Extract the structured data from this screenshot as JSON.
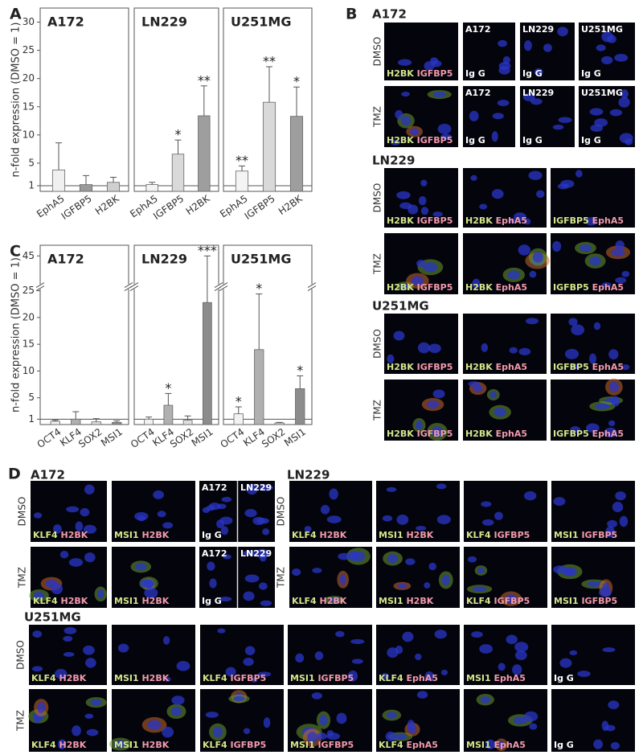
{
  "chart_data": [
    {
      "type": "bar",
      "panel_label": "A",
      "ylabel": "n-fold expression (DMSO = 1)",
      "title": "A172",
      "categories": [
        "EphA5",
        "IGFBP5",
        "H2BK"
      ],
      "values": [
        3.8,
        1.2,
        1.6
      ],
      "errors": [
        4.8,
        1.6,
        0.9
      ],
      "significance": [
        null,
        null,
        null
      ],
      "colors": [
        "#f0f0f0",
        "#9a9a9a",
        "#cfcfcf"
      ],
      "ylim": [
        0,
        32.5
      ],
      "yticks": [
        1,
        5,
        10,
        15,
        20,
        25,
        30
      ],
      "reference_line": 1
    },
    {
      "type": "bar",
      "title": "LN229",
      "categories": [
        "EphA5",
        "IGFBP5",
        "H2BK"
      ],
      "values": [
        1.2,
        6.6,
        13.4
      ],
      "errors": [
        0.4,
        2.5,
        5.3
      ],
      "significance": [
        null,
        "*",
        "**"
      ],
      "colors": [
        "#f4f4f4",
        "#d9d9d9",
        "#9e9e9e"
      ],
      "ylim": [
        0,
        32.5
      ],
      "reference_line": 1
    },
    {
      "type": "bar",
      "title": "U251MG",
      "categories": [
        "EphA5",
        "IGFBP5",
        "H2BK"
      ],
      "values": [
        3.6,
        15.8,
        13.3
      ],
      "errors": [
        0.9,
        6.3,
        5.2
      ],
      "significance": [
        "**",
        "**",
        "*"
      ],
      "colors": [
        "#f4f4f4",
        "#d9d9d9",
        "#9e9e9e"
      ],
      "ylim": [
        0,
        32.5
      ],
      "reference_line": 1
    },
    {
      "type": "bar",
      "panel_label": "C",
      "ylabel": "n-fold expression (DMSO = 1)",
      "title": "A172",
      "categories": [
        "OCT4",
        "KLF4",
        "SOX2",
        "MSI1"
      ],
      "values": [
        0.6,
        1.0,
        0.5,
        0.4
      ],
      "errors": [
        0.2,
        1.4,
        0.6,
        0.3
      ],
      "significance": [
        null,
        null,
        null,
        null
      ],
      "colors": [
        "#f2f2f2",
        "#b0b0b0",
        "#e0e0e0",
        "#8c8c8c"
      ],
      "ylim": [
        0,
        47
      ],
      "ybreak": [
        25,
        40
      ],
      "yticks": [
        1,
        5,
        10,
        15,
        20,
        25,
        45
      ],
      "reference_line": 1
    },
    {
      "type": "bar",
      "title": "LN229",
      "categories": [
        "OCT4",
        "KLF4",
        "SOX2",
        "MSI1"
      ],
      "values": [
        1.0,
        3.6,
        0.8,
        22.8
      ],
      "errors": [
        0.4,
        2.2,
        0.8,
        22.2
      ],
      "significance": [
        null,
        "*",
        null,
        "***"
      ],
      "colors": [
        "#f2f2f2",
        "#b0b0b0",
        "#e0e0e0",
        "#8c8c8c"
      ],
      "ylim": [
        0,
        47
      ],
      "ybreak": [
        25,
        40
      ],
      "reference_line": 1
    },
    {
      "type": "bar",
      "title": "U251MG",
      "categories": [
        "OCT4",
        "KLF4",
        "SOX2",
        "MSI1"
      ],
      "values": [
        2.0,
        14.0,
        0.3,
        6.7
      ],
      "errors": [
        1.3,
        10.4,
        0.1,
        2.4
      ],
      "significance": [
        "*",
        "*",
        null,
        "*"
      ],
      "colors": [
        "#f2f2f2",
        "#b0b0b0",
        "#e0e0e0",
        "#8c8c8c"
      ],
      "ylim": [
        0,
        47
      ],
      "ybreak": [
        25,
        40
      ],
      "reference_line": 1
    }
  ],
  "image_panels": [
    {
      "panel_label": "B",
      "groups": [
        {
          "title": "A172",
          "rows": [
            {
              "condition": "DMSO",
              "images": [
                {
                  "green": "H2BK",
                  "red": "IGFBP5"
                },
                {
                  "top": "A172",
                  "white": "Ig G"
                },
                {
                  "top": "LN229",
                  "white": "Ig G"
                },
                {
                  "top": "U251MG",
                  "white": "Ig G"
                }
              ]
            },
            {
              "condition": "TMZ",
              "images": [
                {
                  "green": "H2BK",
                  "red": "IGFBP5"
                },
                {
                  "top": "A172",
                  "white": "Ig G"
                },
                {
                  "top": "LN229",
                  "white": "Ig G"
                },
                {
                  "top": "U251MG",
                  "white": "Ig G"
                }
              ]
            }
          ]
        },
        {
          "title": "LN229",
          "rows": [
            {
              "condition": "DMSO",
              "images": [
                {
                  "green": "H2BK",
                  "red": "IGFBP5"
                },
                {
                  "green": "H2BK",
                  "red": "EphA5"
                },
                {
                  "green": "IGFBP5",
                  "red": "EphA5"
                }
              ]
            },
            {
              "condition": "TMZ",
              "images": [
                {
                  "green": "H2BK",
                  "red": "IGFBP5"
                },
                {
                  "green": "H2BK",
                  "red": "EphA5"
                },
                {
                  "green": "IGFBP5",
                  "red": "EphA5"
                }
              ]
            }
          ]
        },
        {
          "title": "U251MG",
          "rows": [
            {
              "condition": "DMSO",
              "images": [
                {
                  "green": "H2BK",
                  "red": "IGFBP5"
                },
                {
                  "green": "H2BK",
                  "red": "EphA5"
                },
                {
                  "green": "IGFBP5",
                  "red": "EphA5"
                }
              ]
            },
            {
              "condition": "TMZ",
              "images": [
                {
                  "green": "H2BK",
                  "red": "IGFBP5"
                },
                {
                  "green": "H2BK",
                  "red": "EphA5"
                },
                {
                  "green": "IGFBP5",
                  "red": "EphA5"
                }
              ]
            }
          ]
        }
      ]
    },
    {
      "panel_label": "D",
      "groups": [
        {
          "title": "A172",
          "rows": [
            {
              "condition": "DMSO",
              "images": [
                {
                  "green": "KLF4",
                  "red": "H2BK"
                },
                {
                  "green": "MSI1",
                  "red": "H2BK"
                },
                {
                  "top": "A172",
                  "white": "Ig G"
                },
                {
                  "top": "LN229"
                }
              ]
            },
            {
              "condition": "TMZ",
              "images": [
                {
                  "green": "KLF4",
                  "red": "H2BK"
                },
                {
                  "green": "MSI1",
                  "red": "H2BK"
                },
                {
                  "top": "A172",
                  "white": "Ig G"
                },
                {
                  "top": "LN229"
                }
              ]
            }
          ]
        },
        {
          "title": "LN229",
          "rows": [
            {
              "condition": "DMSO",
              "images": [
                {
                  "green": "KLF4",
                  "red": "H2BK"
                },
                {
                  "green": "MSI1",
                  "red": "H2BK"
                },
                {
                  "green": "KLF4",
                  "red": "IGFBP5"
                },
                {
                  "green": "MSI1",
                  "red": "IGFBP5"
                }
              ]
            },
            {
              "condition": "TMZ",
              "images": [
                {
                  "green": "KLF4",
                  "red": "H2BK"
                },
                {
                  "green": "MSI1",
                  "red": "H2BK"
                },
                {
                  "green": "KLF4",
                  "red": "IGFBP5"
                },
                {
                  "green": "MSI1",
                  "red": "IGFBP5"
                }
              ]
            }
          ]
        },
        {
          "title": "U251MG",
          "rows": [
            {
              "condition": "DMSO",
              "images": [
                {
                  "green": "KLF4",
                  "red": "H2BK"
                },
                {
                  "green": "MSI1",
                  "red": "H2BK"
                },
                {
                  "green": "KLF4",
                  "red": "IGFBP5"
                },
                {
                  "green": "MSI1",
                  "red": "IGFBP5"
                },
                {
                  "green": "KLF4",
                  "red": "EphA5"
                },
                {
                  "green": "MSI1",
                  "red": "EphA5"
                },
                {
                  "white": "Ig G"
                }
              ]
            },
            {
              "condition": "TMZ",
              "images": [
                {
                  "green": "KLF4",
                  "red": "H2BK"
                },
                {
                  "green": "MSI1",
                  "red": "H2BK"
                },
                {
                  "green": "KLF4",
                  "red": "IGFBP5"
                },
                {
                  "green": "MSI1",
                  "red": "IGFBP5"
                },
                {
                  "green": "KLF4",
                  "red": "EphA5"
                },
                {
                  "green": "MSI1",
                  "red": "EphA5"
                },
                {
                  "white": "Ig G"
                }
              ]
            }
          ]
        }
      ]
    }
  ]
}
